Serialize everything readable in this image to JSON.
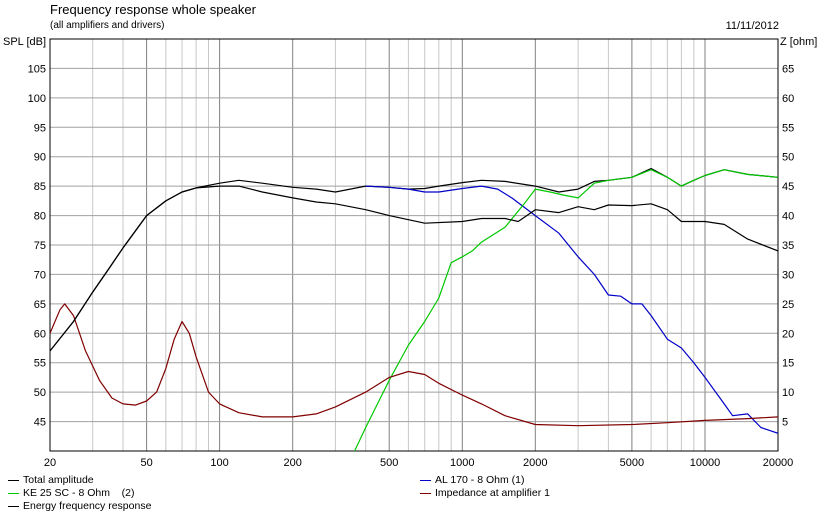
{
  "header": {
    "title": "Frequency response whole speaker",
    "subtitle": "(all amplifiers and drivers)",
    "date": "11/11/2012",
    "left_unit": "SPL [dB]",
    "right_unit": "Z [ohm]"
  },
  "colors": {
    "total": "#000000",
    "tweeter": "#00c800",
    "woofer": "#0000c8",
    "impedance": "#800000",
    "energy": "#000000",
    "grid": "#a0a0a0"
  },
  "chart_data": {
    "type": "line",
    "x_scale": "log",
    "xlim": [
      20,
      20000
    ],
    "x_ticks": [
      20,
      50,
      100,
      200,
      500,
      1000,
      2000,
      5000,
      10000,
      20000
    ],
    "x_tick_labels": [
      "20",
      "50",
      "100",
      "200",
      "500",
      "1000",
      "2000",
      "5000",
      "10000",
      "20000"
    ],
    "ylim_left": [
      40,
      110
    ],
    "ylim_right": [
      0,
      70
    ],
    "y_left_ticks": [
      45,
      50,
      55,
      60,
      65,
      70,
      75,
      80,
      85,
      90,
      95,
      100,
      105
    ],
    "y_right_ticks": [
      5,
      10,
      15,
      20,
      25,
      30,
      35,
      40,
      45,
      50,
      55,
      60,
      65
    ],
    "grid": true,
    "series": [
      {
        "name": "Total amplitude",
        "axis": "left",
        "color": "#000000",
        "points": [
          [
            20,
            57
          ],
          [
            25,
            62
          ],
          [
            30,
            67
          ],
          [
            35,
            71
          ],
          [
            40,
            74.5
          ],
          [
            50,
            80
          ],
          [
            60,
            82.5
          ],
          [
            70,
            84
          ],
          [
            80,
            84.7
          ],
          [
            100,
            85.5
          ],
          [
            120,
            86
          ],
          [
            150,
            85.5
          ],
          [
            200,
            84.8
          ],
          [
            250,
            84.5
          ],
          [
            300,
            84
          ],
          [
            400,
            85
          ],
          [
            500,
            84.8
          ],
          [
            600,
            84.5
          ],
          [
            700,
            84.6
          ],
          [
            800,
            85
          ],
          [
            1000,
            85.6
          ],
          [
            1200,
            86
          ],
          [
            1500,
            85.8
          ],
          [
            2000,
            85
          ],
          [
            2500,
            84
          ],
          [
            3000,
            84.5
          ],
          [
            3500,
            85.8
          ],
          [
            4000,
            86
          ],
          [
            5000,
            86.5
          ],
          [
            6000,
            88
          ],
          [
            7000,
            86.5
          ],
          [
            8000,
            85
          ],
          [
            9000,
            86
          ],
          [
            10000,
            86.8
          ],
          [
            12000,
            87.8
          ],
          [
            15000,
            87
          ],
          [
            20000,
            86.5
          ]
        ]
      },
      {
        "name": "AL 170 - 8 Ohm (1)",
        "axis": "left",
        "color": "#0000c8",
        "points": [
          [
            400,
            85
          ],
          [
            500,
            84.8
          ],
          [
            600,
            84.5
          ],
          [
            700,
            84
          ],
          [
            800,
            84
          ],
          [
            1000,
            84.6
          ],
          [
            1200,
            85
          ],
          [
            1400,
            84.5
          ],
          [
            1600,
            83
          ],
          [
            2000,
            80
          ],
          [
            2500,
            77
          ],
          [
            3000,
            73
          ],
          [
            3500,
            70
          ],
          [
            4000,
            66.5
          ],
          [
            4500,
            66.3
          ],
          [
            5000,
            65
          ],
          [
            5500,
            65
          ],
          [
            6000,
            63
          ],
          [
            7000,
            59
          ],
          [
            8000,
            57.5
          ],
          [
            9000,
            55
          ],
          [
            10000,
            52.5
          ],
          [
            12000,
            48
          ],
          [
            13000,
            46
          ],
          [
            15000,
            46.3
          ],
          [
            17000,
            44
          ],
          [
            20000,
            43
          ]
        ]
      },
      {
        "name": "KE 25 SC - 8 Ohm    (2)",
        "axis": "left",
        "color": "#00c800",
        "points": [
          [
            360,
            40
          ],
          [
            400,
            44
          ],
          [
            500,
            52
          ],
          [
            600,
            58
          ],
          [
            700,
            62
          ],
          [
            800,
            66
          ],
          [
            900,
            72
          ],
          [
            1000,
            73
          ],
          [
            1100,
            74
          ],
          [
            1200,
            75.5
          ],
          [
            1500,
            78
          ],
          [
            1800,
            82
          ],
          [
            2000,
            84.5
          ],
          [
            2300,
            84
          ],
          [
            2600,
            83.5
          ],
          [
            3000,
            83
          ],
          [
            3500,
            85.5
          ],
          [
            4000,
            86
          ],
          [
            5000,
            86.5
          ],
          [
            6000,
            87.8
          ],
          [
            7000,
            86.5
          ],
          [
            8000,
            85
          ],
          [
            9000,
            86
          ],
          [
            10000,
            86.8
          ],
          [
            12000,
            87.8
          ],
          [
            15000,
            87
          ],
          [
            20000,
            86.5
          ]
        ]
      },
      {
        "name": "Impedance at amplifier 1",
        "axis": "right",
        "color": "#800000",
        "points": [
          [
            20,
            20
          ],
          [
            22,
            24
          ],
          [
            23,
            25
          ],
          [
            25,
            23
          ],
          [
            28,
            17
          ],
          [
            32,
            12
          ],
          [
            36,
            9
          ],
          [
            40,
            8
          ],
          [
            45,
            7.8
          ],
          [
            50,
            8.5
          ],
          [
            55,
            10
          ],
          [
            60,
            14
          ],
          [
            65,
            19
          ],
          [
            70,
            22
          ],
          [
            75,
            20
          ],
          [
            80,
            16
          ],
          [
            90,
            10
          ],
          [
            100,
            8
          ],
          [
            120,
            6.5
          ],
          [
            150,
            5.8
          ],
          [
            200,
            5.8
          ],
          [
            250,
            6.3
          ],
          [
            300,
            7.5
          ],
          [
            400,
            10
          ],
          [
            500,
            12.5
          ],
          [
            600,
            13.5
          ],
          [
            700,
            13
          ],
          [
            800,
            11.5
          ],
          [
            1000,
            9.5
          ],
          [
            1200,
            8
          ],
          [
            1500,
            6
          ],
          [
            2000,
            4.5
          ],
          [
            3000,
            4.3
          ],
          [
            5000,
            4.5
          ],
          [
            7000,
            4.8
          ],
          [
            10000,
            5.2
          ],
          [
            15000,
            5.5
          ],
          [
            20000,
            5.8
          ]
        ]
      },
      {
        "name": "Energy frequency response",
        "axis": "left",
        "color": "#000000",
        "points": [
          [
            20,
            57
          ],
          [
            25,
            62
          ],
          [
            30,
            67
          ],
          [
            35,
            71
          ],
          [
            40,
            74.5
          ],
          [
            50,
            80
          ],
          [
            60,
            82.5
          ],
          [
            70,
            84
          ],
          [
            80,
            84.7
          ],
          [
            100,
            85
          ],
          [
            120,
            85
          ],
          [
            150,
            84
          ],
          [
            200,
            83
          ],
          [
            250,
            82.3
          ],
          [
            300,
            82
          ],
          [
            400,
            81
          ],
          [
            500,
            80
          ],
          [
            700,
            78.7
          ],
          [
            1000,
            79
          ],
          [
            1200,
            79.5
          ],
          [
            1500,
            79.5
          ],
          [
            1700,
            79
          ],
          [
            2000,
            81
          ],
          [
            2500,
            80.5
          ],
          [
            3000,
            81.5
          ],
          [
            3500,
            81
          ],
          [
            4000,
            81.8
          ],
          [
            5000,
            81.7
          ],
          [
            6000,
            82
          ],
          [
            7000,
            81
          ],
          [
            8000,
            79
          ],
          [
            10000,
            79
          ],
          [
            12000,
            78.5
          ],
          [
            15000,
            76
          ],
          [
            20000,
            74
          ]
        ]
      }
    ]
  }
}
